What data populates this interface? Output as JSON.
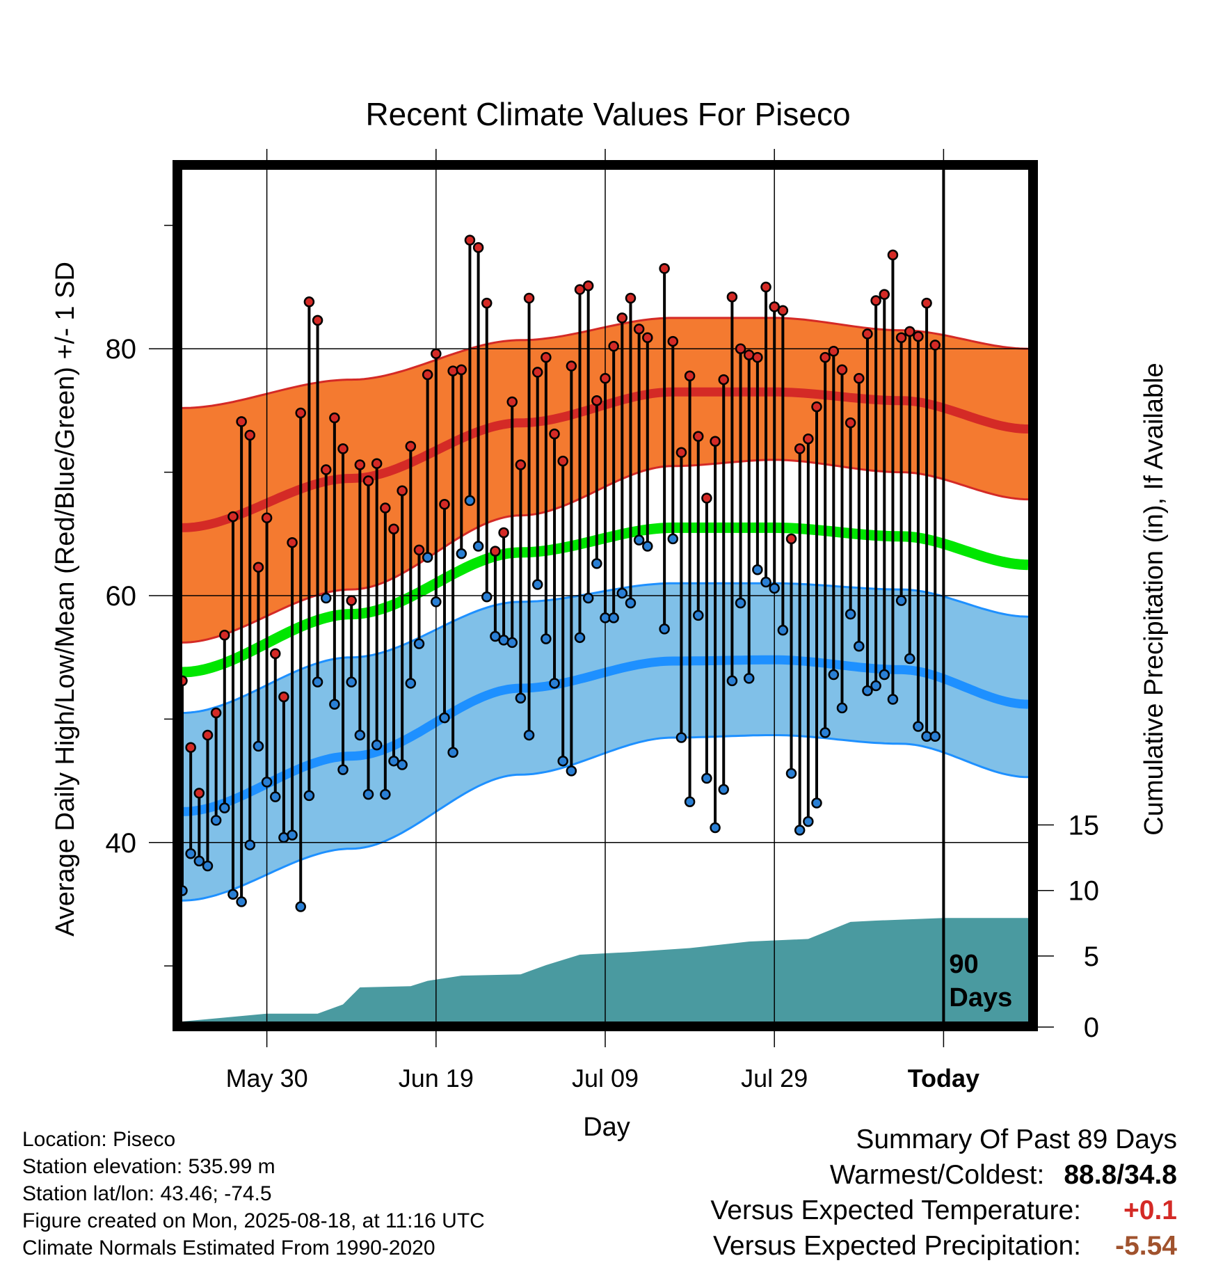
{
  "chart_data": {
    "type": "line",
    "title": "Recent Climate Values For Piseco",
    "xlabel": "Day",
    "ylabel": "Average Daily High/Low/Mean (Red/Blue/Green) +/- 1 SD",
    "y2label": "Cumulative Precipitation (in), If Available",
    "xticks": [
      "May 30",
      "Jun 19",
      "Jul 09",
      "Jul 29",
      "Today"
    ],
    "yticks": [
      40,
      60,
      80
    ],
    "y2ticks": [
      0,
      5,
      10,
      15
    ],
    "ylim": [
      25.5,
      94.5
    ],
    "y2lim": [
      0,
      65
    ],
    "xlim": [
      -10,
      90
    ],
    "annotation": "90 Days",
    "normal_high": [
      {
        "x": -10,
        "value": 65.5
      },
      {
        "x": 10,
        "value": 69.5
      },
      {
        "x": 30,
        "value": 74.0
      },
      {
        "x": 48,
        "value": 76.5
      },
      {
        "x": 60,
        "value": 76.5
      },
      {
        "x": 75,
        "value": 75.8
      },
      {
        "x": 90,
        "value": 73.5
      }
    ],
    "normal_high_sd_upper": [
      {
        "x": -10,
        "value": 75.2
      },
      {
        "x": 10,
        "value": 77.5
      },
      {
        "x": 30,
        "value": 80.7
      },
      {
        "x": 48,
        "value": 82.5
      },
      {
        "x": 60,
        "value": 82.5
      },
      {
        "x": 75,
        "value": 81.5
      },
      {
        "x": 90,
        "value": 80.0
      }
    ],
    "normal_high_sd_lower": [
      {
        "x": -10,
        "value": 56.2
      },
      {
        "x": 10,
        "value": 60.5
      },
      {
        "x": 30,
        "value": 66.5
      },
      {
        "x": 48,
        "value": 70.5
      },
      {
        "x": 60,
        "value": 71.0
      },
      {
        "x": 75,
        "value": 70.0
      },
      {
        "x": 90,
        "value": 67.8
      }
    ],
    "normal_mean": [
      {
        "x": -10,
        "value": 53.8
      },
      {
        "x": 10,
        "value": 58.5
      },
      {
        "x": 30,
        "value": 63.5
      },
      {
        "x": 48,
        "value": 65.5
      },
      {
        "x": 60,
        "value": 65.5
      },
      {
        "x": 75,
        "value": 64.8
      },
      {
        "x": 90,
        "value": 62.5
      }
    ],
    "normal_low": [
      {
        "x": -10,
        "value": 42.5
      },
      {
        "x": 10,
        "value": 47.0
      },
      {
        "x": 30,
        "value": 52.5
      },
      {
        "x": 48,
        "value": 54.7
      },
      {
        "x": 60,
        "value": 54.8
      },
      {
        "x": 75,
        "value": 54.0
      },
      {
        "x": 90,
        "value": 51.2
      }
    ],
    "normal_low_sd_upper": [
      {
        "x": -10,
        "value": 50.5
      },
      {
        "x": 10,
        "value": 55.0
      },
      {
        "x": 30,
        "value": 59.5
      },
      {
        "x": 48,
        "value": 61.0
      },
      {
        "x": 60,
        "value": 61.0
      },
      {
        "x": 75,
        "value": 60.5
      },
      {
        "x": 90,
        "value": 58.3
      }
    ],
    "normal_low_sd_lower": [
      {
        "x": -10,
        "value": 35.3
      },
      {
        "x": 10,
        "value": 39.5
      },
      {
        "x": 30,
        "value": 45.5
      },
      {
        "x": 48,
        "value": 48.5
      },
      {
        "x": 60,
        "value": 48.7
      },
      {
        "x": 75,
        "value": 48.0
      },
      {
        "x": 90,
        "value": 45.3
      }
    ],
    "cumulative_precipitation": [
      {
        "x": -10,
        "value": 0.0
      },
      {
        "x": -5,
        "value": 0.3
      },
      {
        "x": 0,
        "value": 0.6
      },
      {
        "x": 6,
        "value": 0.6
      },
      {
        "x": 9,
        "value": 1.3
      },
      {
        "x": 11,
        "value": 2.6
      },
      {
        "x": 17,
        "value": 2.7
      },
      {
        "x": 19,
        "value": 3.1
      },
      {
        "x": 23,
        "value": 3.5
      },
      {
        "x": 30,
        "value": 3.6
      },
      {
        "x": 33,
        "value": 4.3
      },
      {
        "x": 37,
        "value": 5.1
      },
      {
        "x": 43,
        "value": 5.3
      },
      {
        "x": 50,
        "value": 5.6
      },
      {
        "x": 57,
        "value": 6.1
      },
      {
        "x": 64,
        "value": 6.3
      },
      {
        "x": 69,
        "value": 7.6
      },
      {
        "x": 72,
        "value": 7.7
      },
      {
        "x": 80,
        "value": 7.9
      },
      {
        "x": 90,
        "value": 7.9
      }
    ],
    "daily_observed": [
      {
        "x": -10,
        "high": 53.1,
        "low": 36.1
      },
      {
        "x": -9,
        "high": 47.7,
        "low": 39.1
      },
      {
        "x": -8,
        "high": 44.0,
        "low": 38.5
      },
      {
        "x": -7,
        "high": 48.7,
        "low": 38.1
      },
      {
        "x": -6,
        "high": 50.5,
        "low": 41.8
      },
      {
        "x": -5,
        "high": 56.8,
        "low": 42.8
      },
      {
        "x": -4,
        "high": 66.4,
        "low": 35.8
      },
      {
        "x": -3,
        "high": 74.1,
        "low": 35.2
      },
      {
        "x": -2,
        "high": 73.0,
        "low": 39.8
      },
      {
        "x": -1,
        "high": 62.3,
        "low": 47.8
      },
      {
        "x": 0,
        "high": 66.3,
        "low": 44.9
      },
      {
        "x": 1,
        "high": 55.3,
        "low": 43.7
      },
      {
        "x": 2,
        "high": 51.8,
        "low": 40.4
      },
      {
        "x": 3,
        "high": 64.3,
        "low": 40.6
      },
      {
        "x": 4,
        "high": 74.8,
        "low": 34.8
      },
      {
        "x": 5,
        "high": 83.8,
        "low": 43.8
      },
      {
        "x": 6,
        "high": 82.3,
        "low": 53.0
      },
      {
        "x": 7,
        "high": 70.2,
        "low": 59.8
      },
      {
        "x": 8,
        "high": 74.4,
        "low": 51.2
      },
      {
        "x": 9,
        "high": 71.9,
        "low": 45.9
      },
      {
        "x": 10,
        "high": 59.6,
        "low": 53.0
      },
      {
        "x": 11,
        "high": 70.6,
        "low": 48.7
      },
      {
        "x": 12,
        "high": 69.3,
        "low": 43.9
      },
      {
        "x": 13,
        "high": 70.7,
        "low": 47.9
      },
      {
        "x": 14,
        "high": 67.1,
        "low": 43.9
      },
      {
        "x": 15,
        "high": 65.4,
        "low": 46.6
      },
      {
        "x": 16,
        "high": 68.5,
        "low": 46.3
      },
      {
        "x": 17,
        "high": 72.1,
        "low": 52.9
      },
      {
        "x": 18,
        "high": 63.7,
        "low": 56.1
      },
      {
        "x": 19,
        "high": 77.9,
        "low": 63.1
      },
      {
        "x": 20,
        "high": 79.6,
        "low": 59.5
      },
      {
        "x": 21,
        "high": 67.4,
        "low": 50.1
      },
      {
        "x": 22,
        "high": 78.2,
        "low": 47.3
      },
      {
        "x": 23,
        "high": 78.3,
        "low": 63.4
      },
      {
        "x": 24,
        "high": 88.8,
        "low": 67.7
      },
      {
        "x": 25,
        "high": 88.2,
        "low": 64.0
      },
      {
        "x": 26,
        "high": 83.7,
        "low": 59.9
      },
      {
        "x": 27,
        "high": 63.6,
        "low": 56.7
      },
      {
        "x": 28,
        "high": 65.1,
        "low": 56.4
      },
      {
        "x": 29,
        "high": 75.7,
        "low": 56.2
      },
      {
        "x": 30,
        "high": 70.6,
        "low": 51.7
      },
      {
        "x": 31,
        "high": 84.1,
        "low": 48.7
      },
      {
        "x": 32,
        "high": 78.1,
        "low": 60.9
      },
      {
        "x": 33,
        "high": 79.3,
        "low": 56.5
      },
      {
        "x": 34,
        "high": 73.1,
        "low": 52.9
      },
      {
        "x": 35,
        "high": 70.9,
        "low": 46.6
      },
      {
        "x": 36,
        "high": 78.6,
        "low": 45.8
      },
      {
        "x": 37,
        "high": 84.8,
        "low": 56.6
      },
      {
        "x": 38,
        "high": 85.1,
        "low": 59.8
      },
      {
        "x": 39,
        "high": 75.8,
        "low": 62.6
      },
      {
        "x": 40,
        "high": 77.6,
        "low": 58.2
      },
      {
        "x": 41,
        "high": 80.2,
        "low": 58.2
      },
      {
        "x": 42,
        "high": 82.5,
        "low": 60.2
      },
      {
        "x": 43,
        "high": 84.1,
        "low": 59.4
      },
      {
        "x": 44,
        "high": 81.6,
        "low": 64.5
      },
      {
        "x": 45,
        "high": 80.9,
        "low": 64.0
      },
      {
        "x": 47,
        "high": 86.5,
        "low": 57.3
      },
      {
        "x": 48,
        "high": 80.6,
        "low": 64.6
      },
      {
        "x": 49,
        "high": 71.6,
        "low": 48.5
      },
      {
        "x": 50,
        "high": 77.8,
        "low": 43.3
      },
      {
        "x": 51,
        "high": 72.9,
        "low": 58.4
      },
      {
        "x": 52,
        "high": 67.9,
        "low": 45.2
      },
      {
        "x": 53,
        "high": 72.5,
        "low": 41.2
      },
      {
        "x": 54,
        "high": 77.5,
        "low": 44.3
      },
      {
        "x": 55,
        "high": 84.2,
        "low": 53.1
      },
      {
        "x": 56,
        "high": 80.0,
        "low": 59.4
      },
      {
        "x": 57,
        "high": 79.5,
        "low": 53.3
      },
      {
        "x": 58,
        "high": 79.3,
        "low": 62.1
      },
      {
        "x": 59,
        "high": 85.0,
        "low": 61.1
      },
      {
        "x": 60,
        "high": 83.4,
        "low": 60.6
      },
      {
        "x": 61,
        "high": 83.1,
        "low": 57.2
      },
      {
        "x": 62,
        "high": 64.6,
        "low": 45.6
      },
      {
        "x": 63,
        "high": 71.9,
        "low": 41.0
      },
      {
        "x": 64,
        "high": 72.7,
        "low": 41.7
      },
      {
        "x": 65,
        "high": 75.3,
        "low": 43.2
      },
      {
        "x": 66,
        "high": 79.3,
        "low": 48.9
      },
      {
        "x": 67,
        "high": 79.8,
        "low": 53.6
      },
      {
        "x": 68,
        "high": 78.3,
        "low": 50.9
      },
      {
        "x": 69,
        "high": 74.0,
        "low": 58.5
      },
      {
        "x": 70,
        "high": 77.6,
        "low": 55.9
      },
      {
        "x": 71,
        "high": 81.2,
        "low": 52.3
      },
      {
        "x": 72,
        "high": 83.9,
        "low": 52.7
      },
      {
        "x": 73,
        "high": 84.4,
        "low": 53.6
      },
      {
        "x": 74,
        "high": 87.6,
        "low": 51.6
      },
      {
        "x": 75,
        "high": 80.9,
        "low": 59.6
      },
      {
        "x": 76,
        "high": 81.4,
        "low": 54.9
      },
      {
        "x": 77,
        "high": 81.0,
        "low": 49.4
      },
      {
        "x": 78,
        "high": 83.7,
        "low": 48.6
      },
      {
        "x": 79,
        "high": 80.3,
        "low": 48.6
      }
    ]
  },
  "info": {
    "location": "Location: Piseco",
    "elevation": "Station elevation: 535.99 m",
    "latlon": "Station lat/lon: 43.46; -74.5",
    "created": "Figure created on Mon, 2025-08-18, at 11:16 UTC",
    "normals": "Climate Normals Estimated From 1990-2020"
  },
  "summary": {
    "title": "Summary Of Past 89 Days",
    "warmest_label": "Warmest/Coldest:",
    "warmest_value": "88.8/34.8",
    "temp_label": "Versus Expected Temperature:",
    "temp_value": "+0.1",
    "precip_label": "Versus Expected Precipitation:",
    "precip_value": "-5.54"
  },
  "colors": {
    "high_band": "#f47a30",
    "high_line": "#d42a26",
    "mean_line": "#00e600",
    "low_band": "#80c0e8",
    "low_line": "#1e90ff",
    "precip_fill": "#4a9aa0",
    "high_dot": "#d42a26",
    "low_dot": "#2a7fd4",
    "temp_value": "#d42a26",
    "precip_value": "#a0522d"
  }
}
